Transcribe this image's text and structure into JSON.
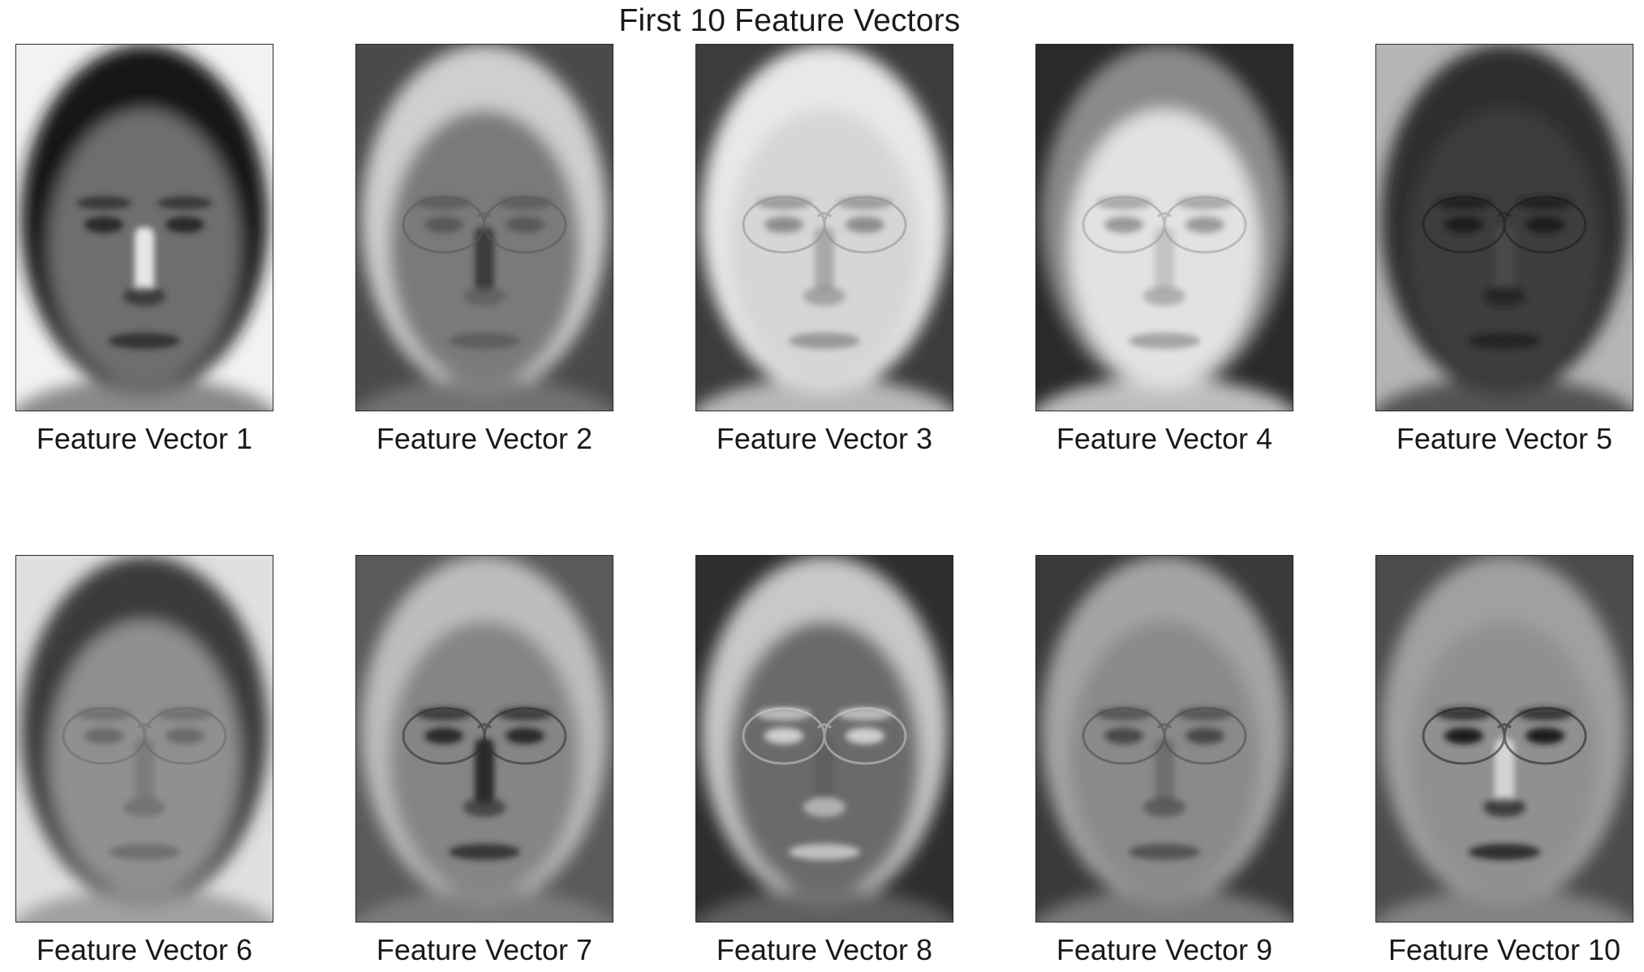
{
  "figure": {
    "title": "First 10 Feature Vectors"
  },
  "panels": [
    {
      "caption": "Feature Vector 1",
      "bg": "#f2f2f2",
      "head": "#151515",
      "face": "#6e6e6e",
      "feat": "#2a2a2a",
      "glasses": false,
      "nose": "#e6e6e6"
    },
    {
      "caption": "Feature Vector 2",
      "bg": "#4a4a4a",
      "head": "#cfcfcf",
      "face": "#7a7a7a",
      "feat": "#595959",
      "glasses": true,
      "nose": "#3a3a3a"
    },
    {
      "caption": "Feature Vector 3",
      "bg": "#3c3c3c",
      "head": "#e8e8e8",
      "face": "#d6d6d6",
      "feat": "#8e8e8e",
      "glasses": true,
      "nose": "#a8a8a8"
    },
    {
      "caption": "Feature Vector 4",
      "bg": "#2a2a2a",
      "head": "#8a8a8a",
      "face": "#e2e2e2",
      "feat": "#9a9a9a",
      "glasses": true,
      "nose": "#c2c2c2"
    },
    {
      "caption": "Feature Vector 5",
      "bg": "#b5b5b5",
      "head": "#2e2e2e",
      "face": "#3c3c3c",
      "feat": "#1c1c1c",
      "glasses": true,
      "nose": "#4a4a4a"
    },
    {
      "caption": "Feature Vector 6",
      "bg": "#e0e0e0",
      "head": "#3a3a3a",
      "face": "#909090",
      "feat": "#6a6a6a",
      "glasses": true,
      "nose": "#7c7c7c"
    },
    {
      "caption": "Feature Vector 7",
      "bg": "#5a5a5a",
      "head": "#bdbdbd",
      "face": "#858585",
      "feat": "#2c2c2c",
      "glasses": true,
      "nose": "#2a2a2a"
    },
    {
      "caption": "Feature Vector 8",
      "bg": "#2e2e2e",
      "head": "#c8c8c8",
      "face": "#6a6a6a",
      "feat": "#cfcfcf",
      "glasses": true,
      "nose": "#5e5e5e"
    },
    {
      "caption": "Feature Vector 9",
      "bg": "#3a3a3a",
      "head": "#a4a4a4",
      "face": "#8a8a8a",
      "feat": "#4a4a4a",
      "glasses": true,
      "nose": "#6e6e6e"
    },
    {
      "caption": "Feature Vector 10",
      "bg": "#4c4c4c",
      "head": "#a0a0a0",
      "face": "#909090",
      "feat": "#1e1e1e",
      "glasses": true,
      "nose": "#d4d4d4"
    }
  ]
}
